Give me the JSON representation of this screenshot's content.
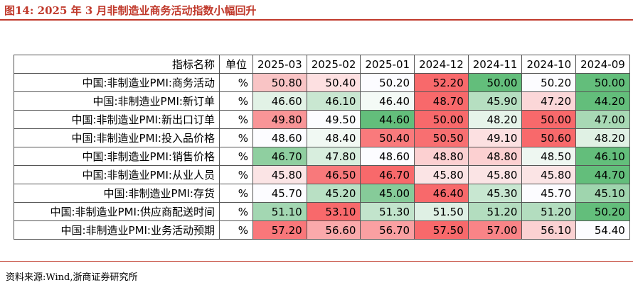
{
  "title": "图14:   2025 年 3 月非制造业商务活动指数小幅回升",
  "source": "资料来源:Wind,浙商证券研究所",
  "headers": {
    "name": "指标名称",
    "unit": "单位",
    "dates": [
      "2025-03",
      "2025-02",
      "2025-01",
      "2024-12",
      "2024-11",
      "2024-10",
      "2024-09"
    ]
  },
  "rows": [
    {
      "name": "中国:非制造业PMI:商务活动",
      "unit": "%",
      "values": [
        "50.80",
        "50.40",
        "50.20",
        "52.20",
        "50.00",
        "50.20",
        "50.00"
      ],
      "colors": [
        "#f9c4c5",
        "#fde0e1",
        "#fcfcff",
        "#f8696b",
        "#63be7b",
        "#fcfcff",
        "#63be7b"
      ]
    },
    {
      "name": "中国:非制造业PMI:新订单",
      "unit": "%",
      "values": [
        "46.60",
        "46.10",
        "46.40",
        "48.70",
        "45.90",
        "47.20",
        "44.20"
      ],
      "colors": [
        "#e2f2e6",
        "#c9e7d1",
        "#f4faf6",
        "#f8696b",
        "#b6dfc1",
        "#fbd7d8",
        "#63be7b"
      ]
    },
    {
      "name": "中国:非制造业PMI:新出口订单",
      "unit": "%",
      "values": [
        "49.80",
        "49.50",
        "44.60",
        "50.00",
        "48.20",
        "50.00",
        "47.00"
      ],
      "colors": [
        "#f99597",
        "#fcfcff",
        "#63be7b",
        "#f8696b",
        "#e6f4ea",
        "#f8696b",
        "#a8d9b5"
      ]
    },
    {
      "name": "中国:非制造业PMI:投入品价格",
      "unit": "%",
      "values": [
        "48.60",
        "48.40",
        "50.40",
        "50.50",
        "49.10",
        "50.60",
        "48.20"
      ],
      "colors": [
        "#fcfcff",
        "#f1f9f3",
        "#f97a7c",
        "#f86f71",
        "#fce0e1",
        "#f8696b",
        "#e0f1e4"
      ]
    },
    {
      "name": "中国:非制造业PMI:销售价格",
      "unit": "%",
      "values": [
        "46.70",
        "47.80",
        "48.60",
        "48.80",
        "48.80",
        "48.50",
        "46.10"
      ],
      "colors": [
        "#8fcfa0",
        "#d8eede",
        "#fcfcff",
        "#fcd0d1",
        "#fcd0d1",
        "#eef7f1",
        "#63be7b"
      ]
    },
    {
      "name": "中国:非制造业PMI:从业人员",
      "unit": "%",
      "values": [
        "45.80",
        "46.50",
        "46.70",
        "45.80",
        "45.80",
        "45.80",
        "44.70"
      ],
      "colors": [
        "#fbe4e5",
        "#f8797b",
        "#f8696b",
        "#fbe4e5",
        "#fbe4e5",
        "#fbe4e5",
        "#63be7b"
      ]
    },
    {
      "name": "中国:非制造业PMI:存货",
      "unit": "%",
      "values": [
        "45.70",
        "45.20",
        "45.00",
        "46.40",
        "45.30",
        "45.70",
        "45.10"
      ],
      "colors": [
        "#fcfcff",
        "#b9e0c4",
        "#86cb99",
        "#f8696b",
        "#c8e7d1",
        "#fcfcff",
        "#9fd5ae"
      ]
    },
    {
      "name": "中国:非制造业PMI:供应商配送时间",
      "unit": "%",
      "values": [
        "51.10",
        "53.10",
        "51.30",
        "51.50",
        "51.20",
        "51.20",
        "50.20"
      ],
      "colors": [
        "#a3d7b2",
        "#f8696b",
        "#c2e4cc",
        "#dff0e4",
        "#b3ddbf",
        "#b3ddbf",
        "#63be7b"
      ]
    },
    {
      "name": "中国:非制造业PMI:业务活动预期",
      "unit": "%",
      "values": [
        "57.20",
        "56.60",
        "56.70",
        "57.50",
        "57.00",
        "56.10",
        "54.40"
      ],
      "colors": [
        "#f9777a",
        "#faa9ab",
        "#faa0a2",
        "#f8696b",
        "#f98487",
        "#fbd1d2",
        "#fcfcff"
      ]
    }
  ]
}
